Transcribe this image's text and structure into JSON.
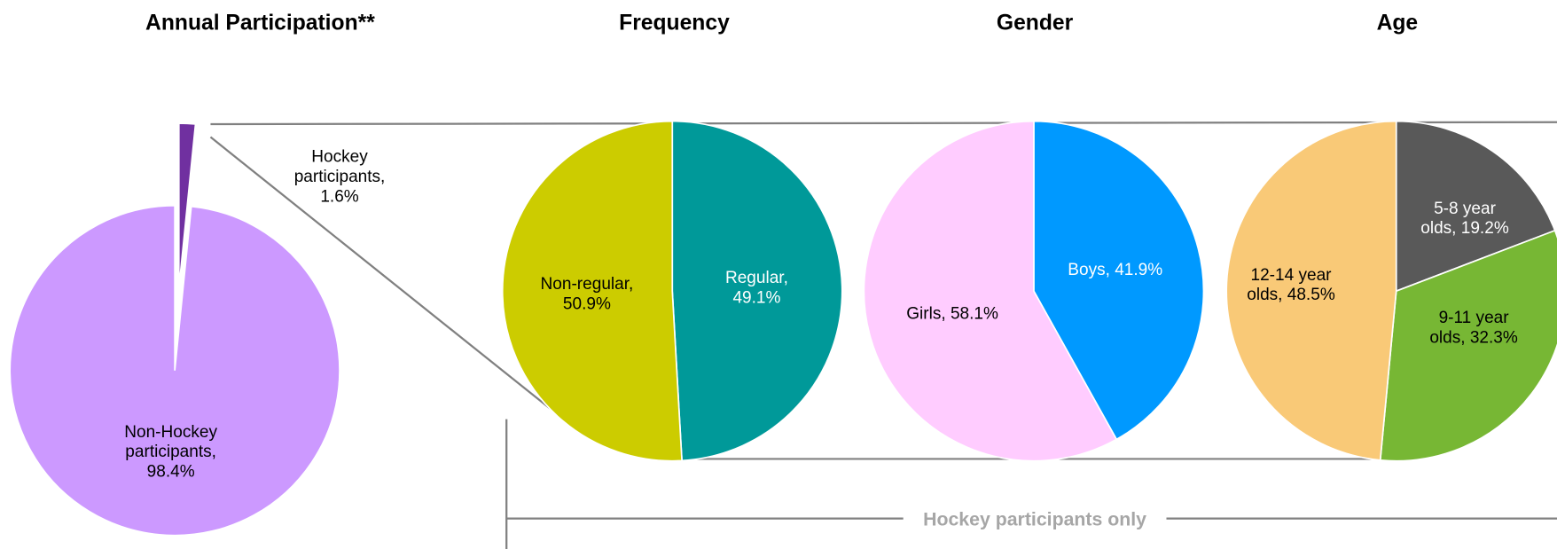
{
  "chart_data": [
    {
      "type": "pie",
      "title": "Annual Participation**",
      "values": [
        1.6,
        98.4
      ],
      "value_labels": [
        "Hockey participants, 1.6%",
        "Non-Hockey participants, 98.4%"
      ],
      "colors": [
        "#7030a0",
        "#cc99ff"
      ],
      "label_colors": [
        "#000000",
        "#000000"
      ]
    },
    {
      "type": "pie",
      "title": "Frequency",
      "values": [
        49.1,
        50.9
      ],
      "value_labels": [
        "Regular, 49.1%",
        "Non-regular, 50.9%"
      ],
      "colors": [
        "#009999",
        "#cccc00"
      ],
      "label_colors": [
        "#ffffff",
        "#000000"
      ]
    },
    {
      "type": "pie",
      "title": "Gender",
      "values": [
        41.9,
        58.1
      ],
      "value_labels": [
        "Boys, 41.9%",
        "Girls, 58.1%"
      ],
      "colors": [
        "#0099ff",
        "#ffccff"
      ],
      "label_colors": [
        "#ffffff",
        "#000000"
      ]
    },
    {
      "type": "pie",
      "title": "Age",
      "values": [
        19.2,
        32.3,
        48.5
      ],
      "value_labels": [
        "5-8 year olds, 19.2%",
        "9-11 year olds, 32.3%",
        "12-14 year olds, 48.5%"
      ],
      "colors": [
        "#595959",
        "#77b734",
        "#f9c977"
      ],
      "label_colors": [
        "#ffffff",
        "#000000",
        "#000000"
      ]
    }
  ],
  "annotation": "Hockey participants only"
}
